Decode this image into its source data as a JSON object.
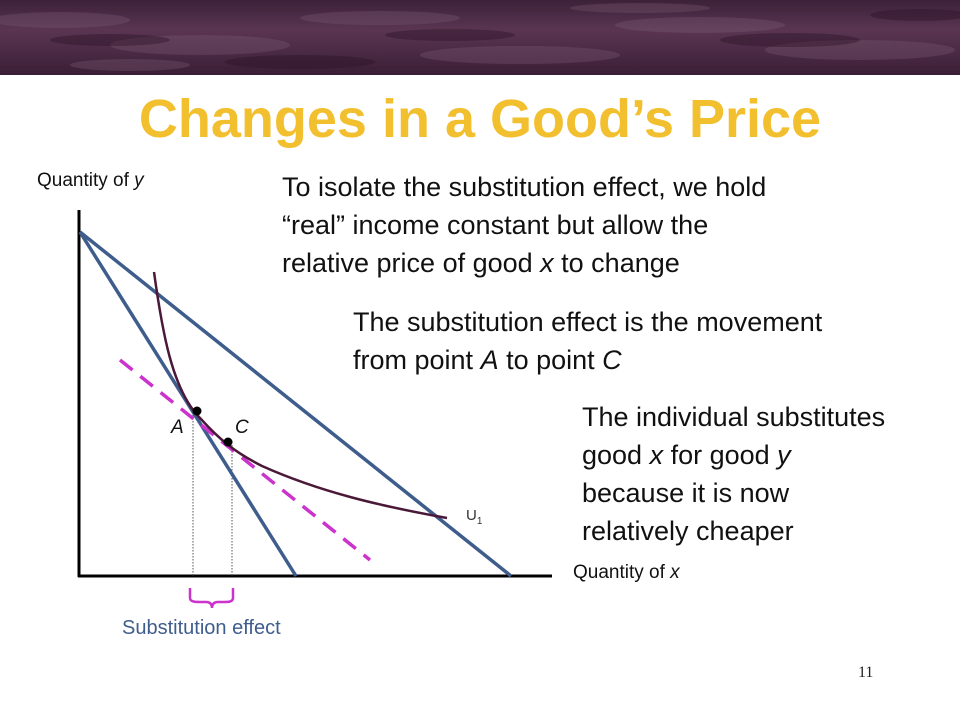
{
  "slide": {
    "title": "Changes in a Good’s Price",
    "page_number": "11"
  },
  "text_blocks": {
    "block1_lines": [
      "To isolate the substitution effect, we hold",
      "“real” income constant but allow the",
      "relative price of good x to change"
    ],
    "block2_lines": [
      "The substitution effect is the movement",
      "from point A to point C"
    ],
    "block3_lines": [
      "The individual substitutes",
      "good x for good y",
      "because it is now",
      "relatively cheaper"
    ]
  },
  "diagram": {
    "y_axis_label": "Quantity of y",
    "x_axis_label": "Quantity of x",
    "point_a_label": "A",
    "point_c_label": "C",
    "curve_label": "U",
    "curve_label_subscript": "1",
    "bracket_label": "Substitution effect",
    "colors": {
      "title": "#f2bf2f",
      "budget_lines": "#3f5d8c",
      "indifference_curve": "#4a1838",
      "dashed_line": "#cc33cc",
      "axes": "#000000",
      "bracket": "#cc33cc"
    }
  }
}
